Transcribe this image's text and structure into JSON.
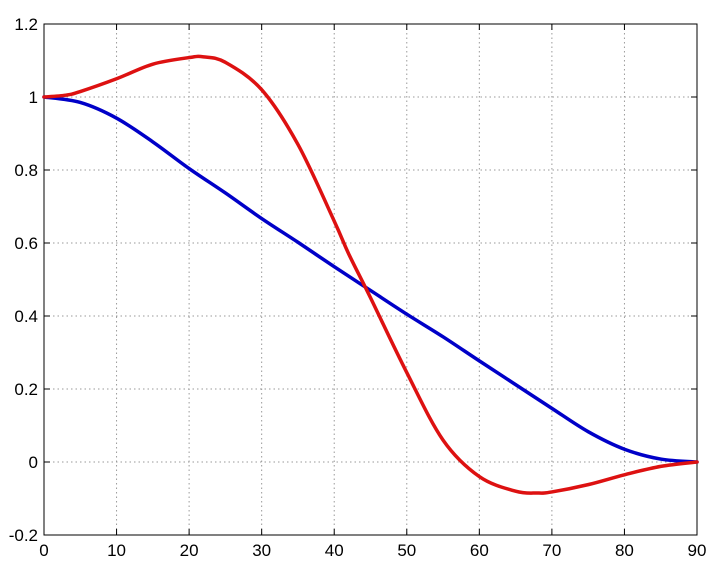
{
  "chart_data": {
    "type": "line",
    "title": "",
    "xlabel": "",
    "ylabel": "",
    "xlim": [
      0,
      90
    ],
    "ylim": [
      -0.2,
      1.2
    ],
    "grid": true,
    "x_ticks": [
      "0",
      "10",
      "20",
      "30",
      "40",
      "50",
      "60",
      "70",
      "80",
      "90"
    ],
    "y_ticks": [
      "-0.2",
      "0",
      "0.2",
      "0.4",
      "0.6",
      "0.8",
      "1",
      "1.2"
    ],
    "x_tick_values": [
      0,
      10,
      20,
      30,
      40,
      50,
      60,
      70,
      80,
      90
    ],
    "y_tick_values": [
      -0.2,
      0,
      0.2,
      0.4,
      0.6,
      0.8,
      1.0,
      1.2
    ],
    "series": [
      {
        "color": "#0000c8",
        "x": [
          0,
          5,
          10,
          15,
          20,
          25,
          30,
          35,
          40,
          45,
          50,
          55,
          60,
          65,
          70,
          75,
          80,
          85,
          90
        ],
        "y": [
          1.0,
          0.985,
          0.942,
          0.877,
          0.804,
          0.737,
          0.667,
          0.602,
          0.535,
          0.47,
          0.405,
          0.343,
          0.277,
          0.212,
          0.147,
          0.083,
          0.035,
          0.008,
          0.0
        ]
      },
      {
        "color": "#dd1111",
        "x": [
          0,
          3,
          5,
          10,
          15,
          20,
          22,
          25,
          30,
          35,
          40,
          42,
          45,
          50,
          55,
          60,
          65,
          68,
          70,
          75,
          80,
          85,
          90
        ],
        "y": [
          1.0,
          1.005,
          1.015,
          1.05,
          1.09,
          1.108,
          1.11,
          1.095,
          1.02,
          0.87,
          0.66,
          0.57,
          0.45,
          0.245,
          0.06,
          -0.04,
          -0.08,
          -0.085,
          -0.082,
          -0.062,
          -0.035,
          -0.012,
          0.0
        ]
      }
    ]
  }
}
